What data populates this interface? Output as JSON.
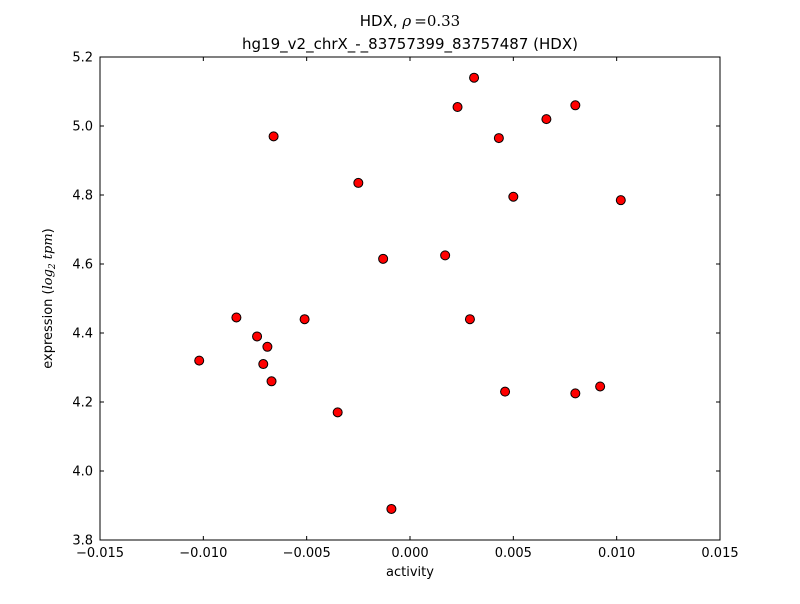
{
  "figure": {
    "background": "#ffffff",
    "title": {
      "line1_prefix": "HDX, ",
      "line1_rho": "ρ",
      "line1_suffix": "=0.33",
      "line2": "hg19_v2_chrX_-_83757399_83757487 (HDX)"
    },
    "xlabel": "activity",
    "ylabel": {
      "prefix": "expression (",
      "math_log": "log",
      "math_sub": "2",
      "math_tpm": " tpm",
      "suffix": ")"
    }
  },
  "chart_data": {
    "type": "scatter",
    "title": "HDX, ρ=0.33",
    "subtitle": "hg19_v2_chrX_-_83757399_83757487 (HDX)",
    "xlabel": "activity",
    "ylabel": "expression (log2 tpm)",
    "xlim": [
      -0.015,
      0.015
    ],
    "ylim": [
      3.8,
      5.2
    ],
    "xticks": [
      -0.015,
      -0.01,
      -0.005,
      0,
      0.005,
      0.01,
      0.015
    ],
    "xtick_labels": [
      "−0.015",
      "−0.010",
      "−0.005",
      "0.000",
      "0.005",
      "0.010",
      "0.015"
    ],
    "yticks": [
      3.8,
      4.0,
      4.2,
      4.4,
      4.6,
      4.8,
      5.0,
      5.2
    ],
    "ytick_labels": [
      "3.8",
      "4.0",
      "4.2",
      "4.4",
      "4.6",
      "4.8",
      "5.0",
      "5.2"
    ],
    "grid": false,
    "legend": null,
    "marker": {
      "shape": "circle",
      "fill": "#ff0000",
      "edge": "#000000",
      "radius_px": 4.5
    },
    "points": [
      {
        "x": -0.0102,
        "y": 4.32
      },
      {
        "x": -0.0084,
        "y": 4.445
      },
      {
        "x": -0.0074,
        "y": 4.39
      },
      {
        "x": -0.0071,
        "y": 4.31
      },
      {
        "x": -0.0069,
        "y": 4.36
      },
      {
        "x": -0.0067,
        "y": 4.26
      },
      {
        "x": -0.0066,
        "y": 4.97
      },
      {
        "x": -0.0051,
        "y": 4.44
      },
      {
        "x": -0.0035,
        "y": 4.17
      },
      {
        "x": -0.0025,
        "y": 4.835
      },
      {
        "x": -0.0013,
        "y": 4.615
      },
      {
        "x": -0.0009,
        "y": 3.89
      },
      {
        "x": 0.0017,
        "y": 4.625
      },
      {
        "x": 0.0023,
        "y": 5.055
      },
      {
        "x": 0.0029,
        "y": 4.44
      },
      {
        "x": 0.0031,
        "y": 5.14
      },
      {
        "x": 0.0043,
        "y": 4.965
      },
      {
        "x": 0.0046,
        "y": 4.23
      },
      {
        "x": 0.005,
        "y": 4.795
      },
      {
        "x": 0.0066,
        "y": 5.02
      },
      {
        "x": 0.008,
        "y": 5.06
      },
      {
        "x": 0.008,
        "y": 4.225
      },
      {
        "x": 0.0092,
        "y": 4.245
      },
      {
        "x": 0.0102,
        "y": 4.785
      }
    ]
  }
}
